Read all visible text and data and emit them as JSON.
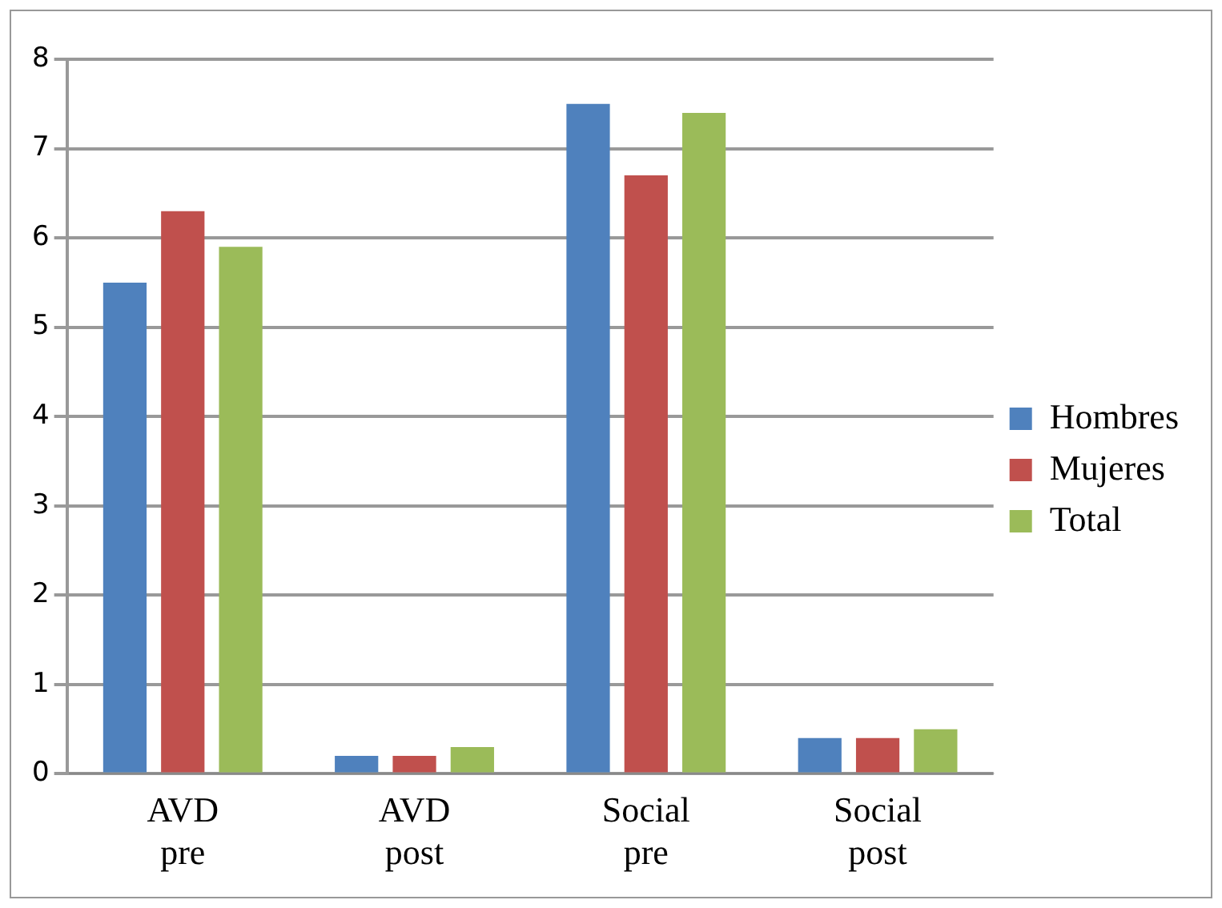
{
  "chart_data": {
    "type": "bar",
    "categories": [
      "AVD pre",
      "AVD post",
      "Social pre",
      "Social post"
    ],
    "series": [
      {
        "name": "Hombres",
        "color": "#4f81bd",
        "values": [
          5.5,
          0.2,
          7.5,
          0.4
        ]
      },
      {
        "name": "Mujeres",
        "color": "#c0504d",
        "values": [
          6.3,
          0.2,
          6.7,
          0.4
        ]
      },
      {
        "name": "Total",
        "color": "#9bbb59",
        "values": [
          5.9,
          0.3,
          7.4,
          0.5
        ]
      }
    ],
    "ylim": [
      0,
      8
    ],
    "yticks": [
      0,
      1,
      2,
      3,
      4,
      5,
      6,
      7,
      8
    ],
    "grid": "y",
    "legend": "right"
  }
}
